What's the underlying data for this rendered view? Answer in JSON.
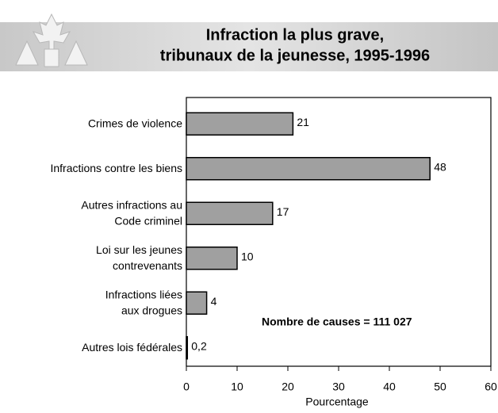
{
  "chart_data": {
    "type": "bar",
    "orientation": "horizontal",
    "title": [
      "Infraction la plus grave,",
      "tribunaux de la jeunesse, 1995-1996"
    ],
    "categories": [
      "Crimes de violence",
      "Infractions contre les biens",
      "Autres infractions au\nCode criminel",
      "Loi sur les jeunes\ncontrevenants",
      "Infractions liées\naux drogues",
      "Autres lois fédérales"
    ],
    "values": [
      21,
      48,
      17,
      10,
      4,
      0.2
    ],
    "value_labels": [
      "21",
      "48",
      "17",
      "10",
      "4",
      "0,2"
    ],
    "color": "#a0a0a0",
    "xlim": [
      0,
      60
    ],
    "xticks": [
      0,
      10,
      20,
      30,
      40,
      50,
      60
    ],
    "x_label": "Pourcentage",
    "annotation": "Nombre de causes  = 111 027"
  }
}
